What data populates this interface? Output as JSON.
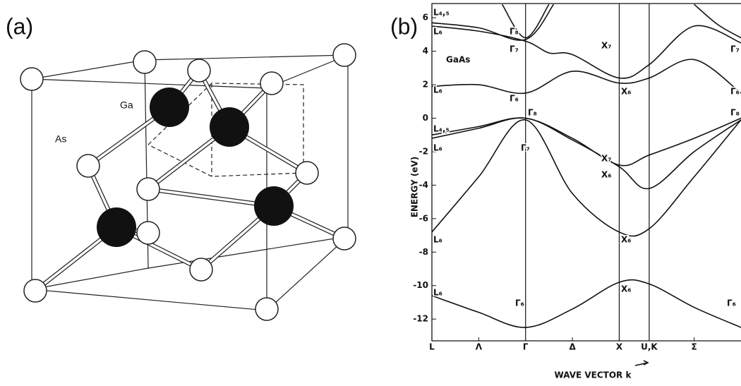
{
  "panel_a": {
    "label": "(a)",
    "ga_label": "Ga",
    "as_label": "As"
  },
  "panel_b": {
    "label": "(b)"
  },
  "chart_data": {
    "type": "line",
    "y_label": "ENERGY (eV)",
    "x_label": "WAVE VECTOR k",
    "ylim": [
      -13.3,
      6.85
    ],
    "yticks": [
      6,
      4,
      2,
      0,
      -2,
      -4,
      -6,
      -8,
      -10,
      -12
    ],
    "xlim": [
      0,
      3.3
    ],
    "xticks": [
      {
        "value": 0,
        "label": "L"
      },
      {
        "value": 0.5,
        "label": "Λ"
      },
      {
        "value": 1,
        "label": "Γ"
      },
      {
        "value": 1.5,
        "label": "Δ"
      },
      {
        "value": 2,
        "label": "X"
      },
      {
        "value": 2.32,
        "label": "U,K"
      },
      {
        "value": 2.8,
        "label": "Σ"
      }
    ],
    "series": [
      {
        "color": "#111",
        "x": [
          0,
          0.5,
          1,
          1.5,
          2,
          2.32,
          2.8,
          3.3
        ],
        "values": [
          -10.6,
          -11.6,
          -12.5,
          -11.4,
          -9.8,
          -9.9,
          -11.3,
          -12.5
        ]
      },
      {
        "color": "#111",
        "x": [
          0,
          0.5,
          1,
          1.5,
          2,
          2.32,
          2.8,
          3.3
        ],
        "values": [
          -6.8,
          -3.5,
          -0.1,
          -4.5,
          -6.8,
          -6.6,
          -3.5,
          -0.1
        ]
      },
      {
        "color": "#111",
        "x": [
          0,
          0.5,
          1,
          1.5,
          2,
          2.32,
          2.8,
          3.3
        ],
        "values": [
          -1.2,
          -0.6,
          0,
          -1.3,
          -2.9,
          -4.2,
          -2,
          -0.1
        ]
      },
      {
        "color": "#111",
        "x": [
          0,
          0.5,
          1,
          1.5,
          2,
          2.32,
          2.8,
          3.3
        ],
        "values": [
          -1,
          -0.5,
          0,
          -1.2,
          -2.8,
          -2.2,
          -1.2,
          0
        ]
      },
      {
        "color": "#111",
        "x": [
          0,
          0.5,
          1,
          1.5,
          2,
          2.32,
          2.8,
          3.3
        ],
        "values": [
          1.9,
          2,
          1.5,
          2.8,
          2.1,
          2.4,
          3.5,
          1.5
        ]
      },
      {
        "color": "#111",
        "x": [
          0,
          0.5,
          1,
          1.25,
          1.5,
          2,
          2.32,
          2.8,
          3.3
        ],
        "values": [
          5.5,
          5.2,
          4.6,
          3.9,
          3.8,
          2.4,
          3.2,
          5.5,
          4.5
        ]
      },
      {
        "color": "#111",
        "x": [
          0,
          0.5,
          1,
          1.3
        ],
        "values": [
          5.7,
          5.4,
          4.7,
          6.8
        ]
      },
      {
        "color": "#111",
        "x": [
          0.75,
          1,
          1.25
        ],
        "values": [
          6.8,
          4.8,
          6.8
        ]
      },
      {
        "color": "#111",
        "x": [
          2.8,
          3.05,
          3.3
        ],
        "values": [
          6.8,
          5.6,
          4.8
        ]
      }
    ],
    "annotations": [
      "L₄,₅",
      "L₆",
      "Γ₈",
      "Γ₇",
      "GaAs",
      "X₇",
      "L₆",
      "Γ₆",
      "X₆",
      "Γ₈",
      "L₄,₅",
      "L₆",
      "Γ₇",
      "X₇",
      "X₆",
      "L₆",
      "X₆",
      "L₆",
      "X₆",
      "Γ₆",
      "Γ₆",
      "Γ₇",
      "Γ₆",
      "Γ₈"
    ]
  }
}
